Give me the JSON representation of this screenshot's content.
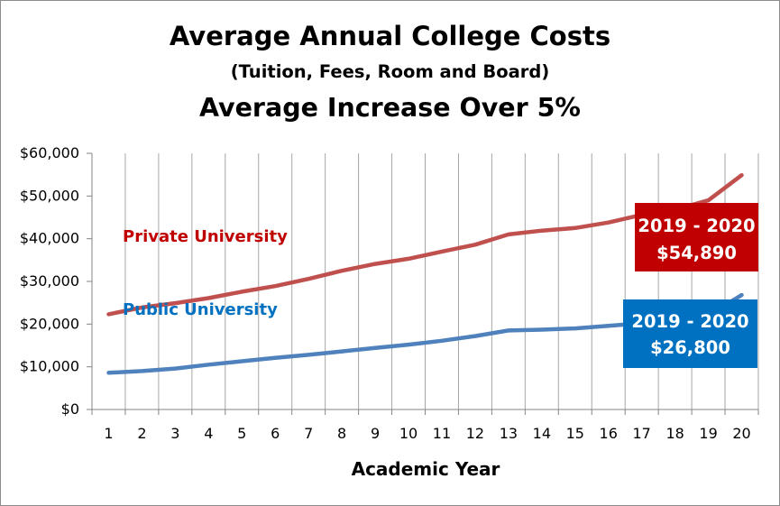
{
  "chart_data": {
    "type": "line",
    "title": "Average Annual College Costs",
    "subtitle": "(Tuition, Fees, Room and Board)",
    "subtitle2": "Average Increase Over 5%",
    "xlabel": "Academic Year",
    "ylabel": "",
    "categories": [
      1,
      2,
      3,
      4,
      5,
      6,
      7,
      8,
      9,
      10,
      11,
      12,
      13,
      14,
      15,
      16,
      17,
      18,
      19,
      20
    ],
    "ylim": [
      0,
      60000
    ],
    "yticks": [
      0,
      10000,
      20000,
      30000,
      40000,
      50000,
      60000
    ],
    "ytick_labels": [
      "$0",
      "$10,000",
      "$20,000",
      "$30,000",
      "$40,000",
      "$50,000",
      "$60,000"
    ],
    "grid": "vertical",
    "legend": "none",
    "series": [
      {
        "name": "Private University",
        "color": "#C0504D",
        "values": [
          22300,
          23900,
          24900,
          26100,
          27600,
          28900,
          30600,
          32500,
          34100,
          35300,
          37000,
          38600,
          41000,
          41900,
          42500,
          43800,
          45600,
          46800,
          49000,
          54890
        ]
      },
      {
        "name": "Public University",
        "color": "#4F81BD",
        "values": [
          8600,
          9000,
          9600,
          10500,
          11300,
          12100,
          12800,
          13600,
          14400,
          15200,
          16100,
          17200,
          18500,
          18700,
          19000,
          19600,
          20200,
          20800,
          22000,
          26800
        ]
      }
    ],
    "annotations": [
      {
        "line1": "2019 - 2020",
        "line2": "$54,890",
        "color": "#C00000"
      },
      {
        "line1": "2019 - 2020",
        "line2": "$26,800",
        "color": "#0070C0"
      }
    ]
  }
}
